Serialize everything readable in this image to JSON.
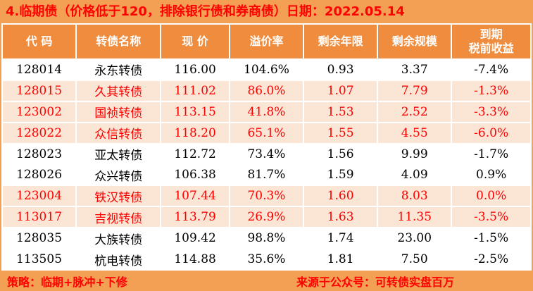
{
  "title": "4.临期债（价格低于120，排除银行债和券商债）日期：2022.05.14",
  "chart_data": {
    "type": "table",
    "title": "临期债（价格低于120，排除银行债和券商债）2022.05.14",
    "columns": [
      "代 码",
      "转债名称",
      "现 价",
      "溢价率",
      "剩余年限",
      "剩余规模",
      "到期\n税前收益"
    ],
    "rows": [
      {
        "highlight": false,
        "cells": [
          "128014",
          "永东转债",
          "116.00",
          "104.6%",
          "0.93",
          "3.37",
          "-7.4%"
        ]
      },
      {
        "highlight": true,
        "cells": [
          "128015",
          "久其转债",
          "111.02",
          "86.0%",
          "1.07",
          "7.79",
          "-1.3%"
        ]
      },
      {
        "highlight": true,
        "cells": [
          "123002",
          "国祯转债",
          "113.15",
          "41.8%",
          "1.53",
          "2.52",
          "-3.3%"
        ]
      },
      {
        "highlight": true,
        "cells": [
          "128022",
          "众信转债",
          "118.20",
          "65.1%",
          "1.55",
          "4.55",
          "-6.0%"
        ]
      },
      {
        "highlight": false,
        "cells": [
          "128023",
          "亚太转债",
          "112.72",
          "73.4%",
          "1.56",
          "9.99",
          "-1.7%"
        ]
      },
      {
        "highlight": false,
        "cells": [
          "128026",
          "众兴转债",
          "106.38",
          "81.7%",
          "1.59",
          "4.09",
          "0.9%"
        ]
      },
      {
        "highlight": true,
        "cells": [
          "123004",
          "铁汉转债",
          "107.44",
          "70.3%",
          "1.60",
          "8.03",
          "0.0%"
        ]
      },
      {
        "highlight": true,
        "cells": [
          "113017",
          "吉视转债",
          "113.79",
          "26.9%",
          "1.63",
          "11.35",
          "-3.5%"
        ]
      },
      {
        "highlight": false,
        "cells": [
          "128035",
          "大族转债",
          "109.42",
          "98.8%",
          "1.74",
          "23.00",
          "-1.5%"
        ]
      },
      {
        "highlight": false,
        "cells": [
          "113505",
          "杭电转债",
          "114.88",
          "35.6%",
          "1.81",
          "7.50",
          "-2.5%"
        ]
      }
    ]
  },
  "footer": {
    "strategy": "策略：临期+脉冲+下修",
    "source": "来源于公众号：可转债实盘百万"
  },
  "colors": {
    "page_background": "#F4A054",
    "header_background": "#F08C3E",
    "highlight_row_background": "#FBE5D5",
    "highlight_text": "#FF0000",
    "normal_text": "#000000",
    "title_text": "#FF0000",
    "gridline": "#FFFFFF"
  }
}
